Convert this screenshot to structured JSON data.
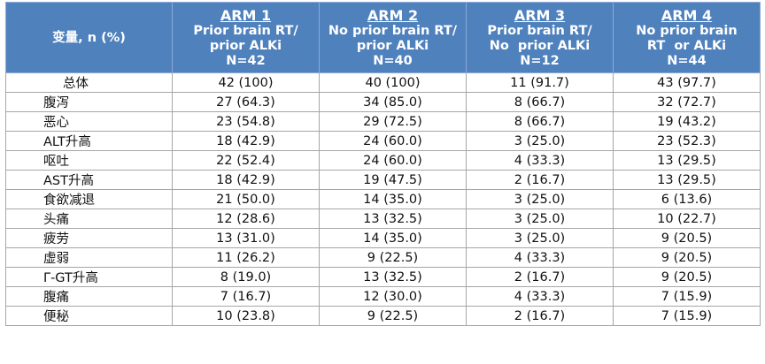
{
  "header": {
    "variable": "变量, n (%)",
    "arms": [
      {
        "title": "ARM 1",
        "lines": [
          "Prior brain RT/",
          "prior ALKi",
          "N=42"
        ]
      },
      {
        "title": "ARM 2",
        "lines": [
          "No prior brain RT/",
          "prior ALKi",
          "N=40"
        ]
      },
      {
        "title": "ARM 3",
        "lines": [
          "Prior brain RT/",
          "No  prior ALKi",
          "N=12"
        ]
      },
      {
        "title": "ARM 4",
        "lines": [
          "No prior brain",
          "RT  or ALKi",
          "N=44"
        ]
      }
    ]
  },
  "rows": [
    {
      "label": "总体",
      "values": [
        "42 (100)",
        "40 (100)",
        "11 (91.7)",
        "43 (97.7)"
      ]
    },
    {
      "label": "腹泻",
      "values": [
        "27 (64.3)",
        "34 (85.0)",
        "8 (66.7)",
        "32 (72.7)"
      ]
    },
    {
      "label": "恶心",
      "values": [
        "23 (54.8)",
        "29 (72.5)",
        "8 (66.7)",
        "19 (43.2)"
      ]
    },
    {
      "label": "ALT升高",
      "values": [
        "18 (42.9)",
        "24 (60.0)",
        "3 (25.0)",
        "23 (52.3)"
      ]
    },
    {
      "label": "呕吐",
      "values": [
        "22 (52.4)",
        "24 (60.0)",
        "4 (33.3)",
        "13 (29.5)"
      ]
    },
    {
      "label": "AST升高",
      "values": [
        "18 (42.9)",
        "19 (47.5)",
        "2 (16.7)",
        "13 (29.5)"
      ]
    },
    {
      "label": "食欲减退",
      "values": [
        "21 (50.0)",
        "14 (35.0)",
        "3 (25.0)",
        "6 (13.6)"
      ]
    },
    {
      "label": "头痛",
      "values": [
        "12 (28.6)",
        "13 (32.5)",
        "3 (25.0)",
        "10 (22.7)"
      ]
    },
    {
      "label": "疲劳",
      "values": [
        "13 (31.0)",
        "14 (35.0)",
        "3 (25.0)",
        "9 (20.5)"
      ]
    },
    {
      "label": "虚弱",
      "values": [
        "11 (26.2)",
        "9 (22.5)",
        "4 (33.3)",
        "9 (20.5)"
      ]
    },
    {
      "label": "Γ-GT升高",
      "values": [
        "8 (19.0)",
        "13 (32.5)",
        "2 (16.7)",
        "9 (20.5)"
      ]
    },
    {
      "label": "腹痛",
      "values": [
        "7 (16.7)",
        "12 (30.0)",
        "4 (33.3)",
        "7 (15.9)"
      ]
    },
    {
      "label": "便秘",
      "values": [
        "10 (23.8)",
        "9 (22.5)",
        "2 (16.7)",
        "7 (15.9)"
      ]
    }
  ]
}
